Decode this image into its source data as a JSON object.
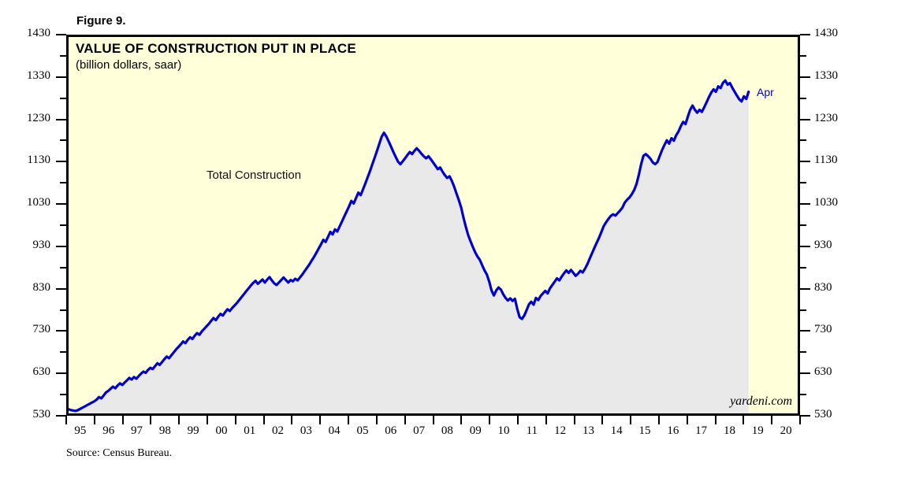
{
  "figure_label": "Figure 9.",
  "source_note": "Source: Census Bureau.",
  "watermark": "yardeni.com",
  "colors": {
    "plot_background": "#FFFFD9",
    "area_fill": "#E9E9EA",
    "line": "#0000CD",
    "axis": "#000000",
    "annotation": "#0000CD"
  },
  "chart_data": {
    "type": "line",
    "title": "VALUE OF CONSTRUCTION PUT IN PLACE",
    "subtitle": "(billion dollars, saar)",
    "xlabel": "",
    "ylabel": "billion dollars, saar",
    "x_range": [
      1995,
      2021
    ],
    "ylim": [
      530,
      1430
    ],
    "y_ticks": [
      530,
      630,
      730,
      830,
      930,
      1030,
      1130,
      1230,
      1330,
      1430
    ],
    "y_minor_step": 50,
    "grid": false,
    "legend_position": "none",
    "x_tick_labels": [
      "95",
      "96",
      "97",
      "98",
      "99",
      "00",
      "01",
      "02",
      "03",
      "04",
      "05",
      "06",
      "07",
      "08",
      "09",
      "10",
      "11",
      "12",
      "13",
      "14",
      "15",
      "16",
      "17",
      "18",
      "19",
      "20"
    ],
    "annotations": [
      {
        "text": "Apr",
        "x": 2019.25,
        "y": 1299
      }
    ],
    "series": [
      {
        "name": "Total Construction",
        "frequency": "monthly",
        "start_year": 1995,
        "end_label": "Apr 2019",
        "values": [
          540,
          538,
          537,
          536,
          538,
          541,
          544,
          547,
          550,
          553,
          556,
          559,
          563,
          569,
          566,
          573,
          580,
          584,
          589,
          594,
          590,
          597,
          602,
          598,
          604,
          609,
          615,
          611,
          617,
          613,
          619,
          625,
          630,
          627,
          634,
          639,
          636,
          643,
          650,
          646,
          653,
          660,
          666,
          662,
          669,
          676,
          683,
          689,
          695,
          702,
          698,
          706,
          712,
          708,
          716,
          722,
          718,
          726,
          732,
          738,
          744,
          751,
          758,
          753,
          761,
          768,
          764,
          772,
          779,
          775,
          782,
          788,
          794,
          801,
          808,
          815,
          822,
          829,
          836,
          842,
          847,
          840,
          845,
          850,
          843,
          850,
          856,
          848,
          841,
          837,
          843,
          849,
          855,
          849,
          843,
          849,
          846,
          852,
          848,
          855,
          862,
          870,
          878,
          886,
          895,
          904,
          914,
          924,
          934,
          945,
          940,
          952,
          964,
          958,
          970,
          965,
          977,
          989,
          1001,
          1013,
          1025,
          1038,
          1032,
          1045,
          1058,
          1052,
          1066,
          1080,
          1095,
          1110,
          1126,
          1142,
          1158,
          1175,
          1192,
          1201,
          1192,
          1180,
          1168,
          1155,
          1143,
          1132,
          1126,
          1133,
          1140,
          1148,
          1155,
          1150,
          1158,
          1164,
          1158,
          1151,
          1145,
          1140,
          1145,
          1138,
          1130,
          1122,
          1114,
          1118,
          1108,
          1100,
          1093,
          1097,
          1086,
          1072,
          1056,
          1040,
          1022,
          998,
          976,
          956,
          942,
          928,
          915,
          905,
          897,
          884,
          872,
          862,
          845,
          824,
          812,
          824,
          831,
          826,
          815,
          806,
          800,
          805,
          799,
          804,
          780,
          760,
          756,
          764,
          777,
          791,
          797,
          790,
          806,
          801,
          811,
          817,
          823,
          817,
          829,
          837,
          845,
          853,
          848,
          857,
          865,
          872,
          866,
          873,
          866,
          859,
          864,
          871,
          867,
          876,
          887,
          900,
          913,
          926,
          938,
          950,
          964,
          978,
          987,
          995,
          1002,
          1006,
          1003,
          1009,
          1015,
          1022,
          1034,
          1041,
          1046,
          1054,
          1064,
          1078,
          1100,
          1126,
          1146,
          1150,
          1145,
          1139,
          1130,
          1126,
          1131,
          1146,
          1160,
          1172,
          1183,
          1175,
          1188,
          1182,
          1195,
          1204,
          1217,
          1227,
          1222,
          1240,
          1256,
          1266,
          1256,
          1249,
          1256,
          1251,
          1262,
          1274,
          1286,
          1297,
          1305,
          1299,
          1312,
          1308,
          1320,
          1326,
          1316,
          1320,
          1309,
          1299,
          1290,
          1281,
          1276,
          1288,
          1282,
          1299
        ]
      }
    ]
  }
}
